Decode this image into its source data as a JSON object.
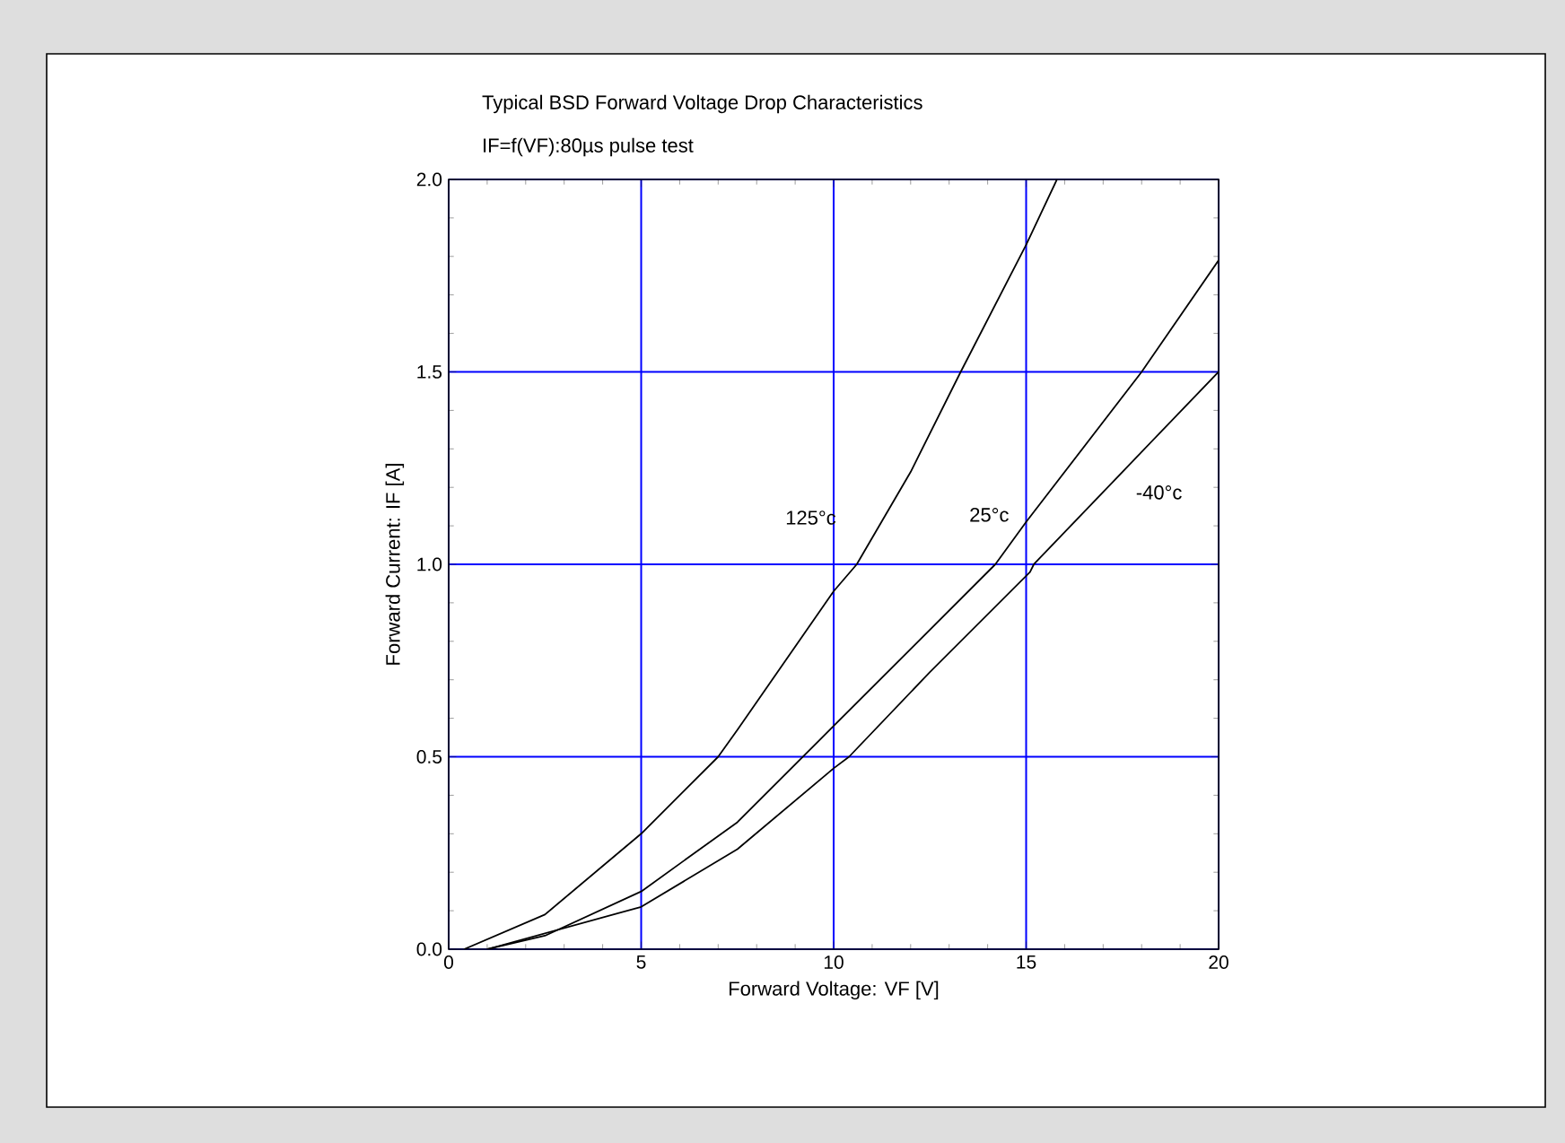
{
  "chart_data": {
    "type": "line",
    "title": "Typical BSD Forward Voltage Drop Characteristics",
    "subtitle": "IF=f(VF):80µs pulse test",
    "xlabel": "Forward Voltage: VF [V]",
    "ylabel": "Forward Current: IF [A]",
    "xlim": [
      0,
      20
    ],
    "ylim": [
      0,
      2.0
    ],
    "xticks": [
      0,
      5,
      10,
      15,
      20
    ],
    "yticks": [
      {
        "value": 0,
        "label": "0.0"
      },
      {
        "value": 0.5,
        "label": "0.5"
      },
      {
        "value": 1,
        "label": "1.0"
      },
      {
        "value": 1.5,
        "label": "1.5"
      },
      {
        "value": 2,
        "label": "2.0"
      }
    ],
    "grid": true,
    "marker": "none",
    "line_style": "solid",
    "series": [
      {
        "name": "125°c",
        "color": "#000000",
        "x": [
          0.4,
          2.5,
          5,
          7,
          7.5,
          10,
          10.6,
          12,
          13.3,
          15,
          15.8
        ],
        "values": [
          0,
          0.09,
          0.3,
          0.5,
          0.57,
          0.93,
          1.0,
          1.24,
          1.5,
          1.83,
          2.0
        ]
      },
      {
        "name": "25°c",
        "color": "#000000",
        "x": [
          1,
          2.5,
          5,
          7.5,
          9.6,
          10,
          14.2,
          15,
          18,
          20
        ],
        "values": [
          0,
          0.035,
          0.15,
          0.33,
          0.54,
          0.58,
          1.0,
          1.11,
          1.5,
          1.79
        ]
      },
      {
        "name": "-40°c",
        "color": "#000000",
        "x": [
          1,
          5,
          7.5,
          10,
          10.4,
          12.5,
          15.1,
          15.2,
          17.5,
          20
        ],
        "values": [
          0,
          0.11,
          0.26,
          0.47,
          0.5,
          0.72,
          0.98,
          1.0,
          1.24,
          1.5
        ]
      }
    ]
  }
}
